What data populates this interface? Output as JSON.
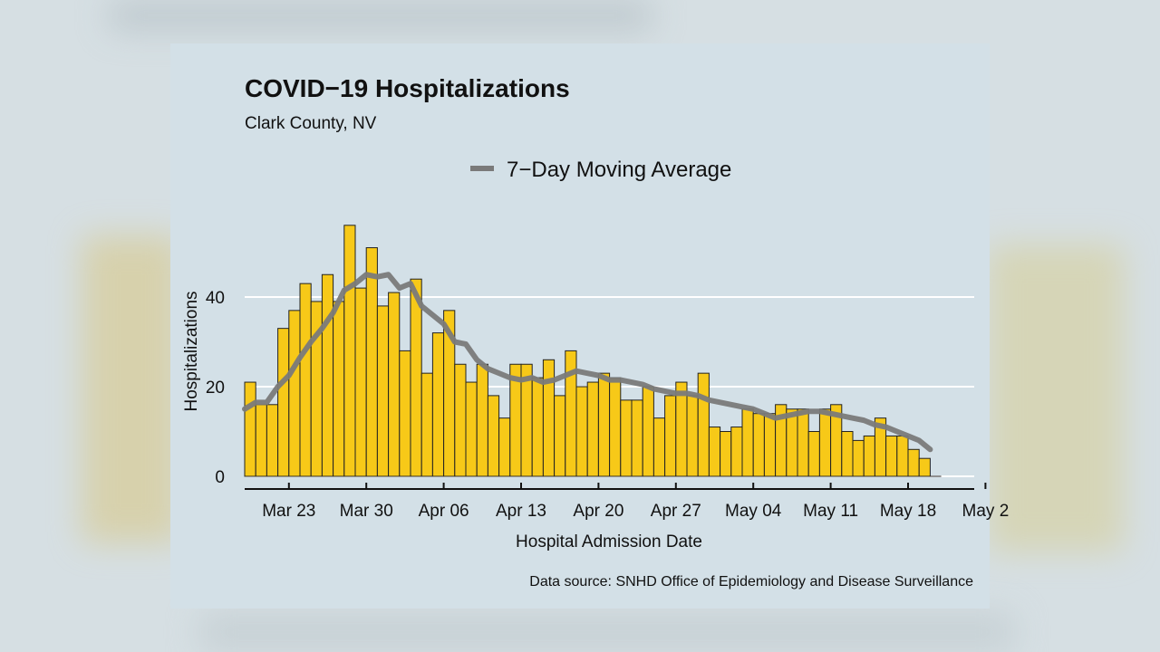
{
  "chart_data": {
    "type": "bar",
    "title": "COVID−19 Hospitalizations",
    "subtitle": "Clark County, NV",
    "xlabel": "Hospital Admission Date",
    "ylabel": "Hospitalizations",
    "caption": "Data source: SNHD Office of Epidemiology and Disease Surveillance",
    "legend": {
      "label": "7−Day Moving Average",
      "position": "top"
    },
    "ylim": [
      0,
      56
    ],
    "yticks": [
      0,
      20,
      40
    ],
    "xticks": [
      "Mar 23",
      "Mar 30",
      "Apr 06",
      "Apr 13",
      "Apr 20",
      "Apr 27",
      "May 04",
      "May 11",
      "May 18",
      "May 2"
    ],
    "first_date": "Mar 19",
    "series": [
      {
        "type": "bar",
        "values": [
          21,
          16,
          16,
          33,
          37,
          43,
          39,
          45,
          39,
          56,
          42,
          51,
          38,
          41,
          28,
          44,
          23,
          32,
          37,
          25,
          21,
          25,
          18,
          13,
          25,
          25,
          22,
          26,
          18,
          28,
          20,
          21,
          23,
          22,
          17,
          17,
          20,
          13,
          18,
          21,
          18,
          23,
          11,
          10,
          11,
          15,
          14,
          14,
          16,
          15,
          15,
          10,
          15,
          16,
          10,
          8,
          9,
          13,
          9,
          9,
          6,
          4,
          0
        ],
        "color": "#f7c918"
      },
      {
        "type": "line",
        "name": "7−Day Moving Average",
        "values": [
          15,
          16.5,
          16.5,
          20,
          22.5,
          26.5,
          30,
          33,
          36.5,
          41.5,
          43,
          45,
          44.5,
          45,
          42,
          43,
          38,
          36,
          34,
          30,
          29.5,
          26,
          24,
          23,
          22,
          21.5,
          22,
          21,
          21.5,
          22.5,
          23.5,
          23,
          22.5,
          21.5,
          21.5,
          21,
          20.5,
          19.5,
          19,
          18.5,
          18.5,
          18,
          17,
          16.5,
          16,
          15.5,
          15,
          14,
          13,
          13.5,
          14,
          14.5,
          14.5,
          14,
          13.5,
          13,
          12.5,
          11.5,
          11,
          10,
          9,
          8,
          6
        ],
        "color": "#7a7a7a"
      }
    ],
    "grid": true
  }
}
